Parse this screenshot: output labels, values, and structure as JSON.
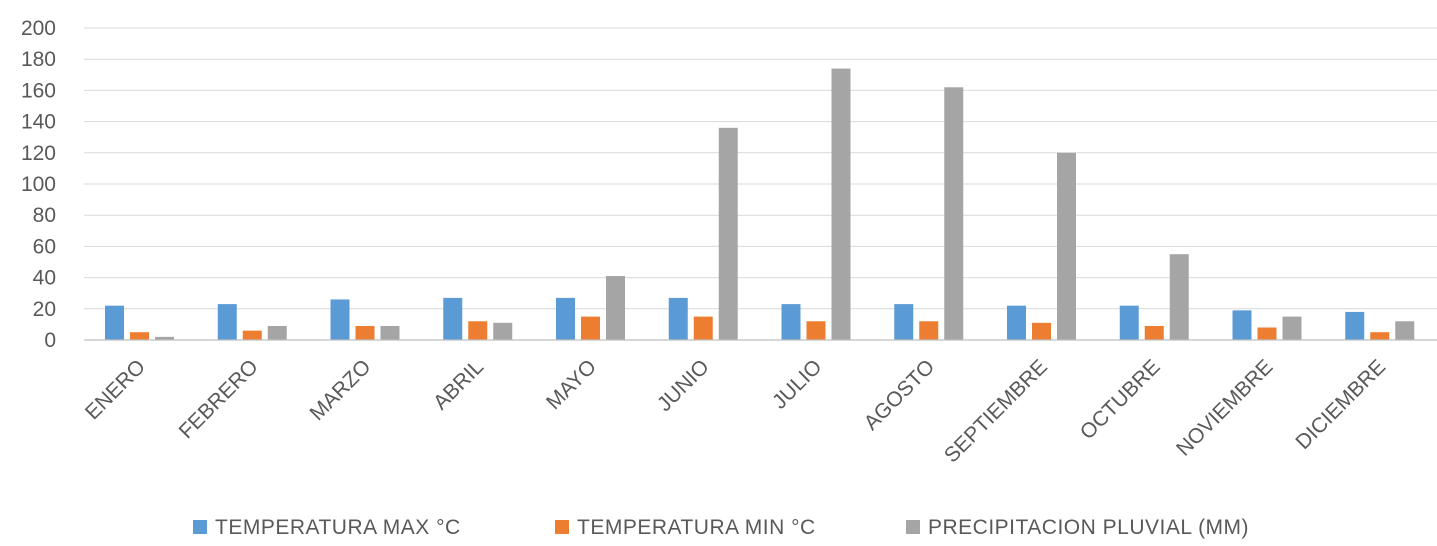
{
  "chart_data": {
    "type": "bar",
    "title": "",
    "xlabel": "",
    "ylabel": "",
    "ylim": [
      0,
      200
    ],
    "yticks": [
      0,
      20,
      40,
      60,
      80,
      100,
      120,
      140,
      160,
      180,
      200
    ],
    "grid": true,
    "legend_position": "bottom",
    "categories": [
      "ENERO",
      "FEBRERO",
      "MARZO",
      "ABRIL",
      "MAYO",
      "JUNIO",
      "JULIO",
      "AGOSTO",
      "SEPTIEMBRE",
      "OCTUBRE",
      "NOVIEMBRE",
      "DICIEMBRE"
    ],
    "series": [
      {
        "name": "TEMPERATURA MAX °C",
        "color": "#5b9bd5",
        "values": [
          22,
          23,
          26,
          27,
          27,
          27,
          23,
          23,
          22,
          22,
          19,
          18
        ]
      },
      {
        "name": "TEMPERATURA MIN °C",
        "color": "#ed7d31",
        "values": [
          5,
          6,
          9,
          12,
          15,
          15,
          12,
          12,
          11,
          9,
          8,
          5
        ]
      },
      {
        "name": "PRECIPITACION PLUVIAL (MM)",
        "color": "#a5a5a5",
        "values": [
          2,
          9,
          9,
          11,
          41,
          136,
          174,
          162,
          120,
          55,
          15,
          12
        ]
      }
    ]
  }
}
